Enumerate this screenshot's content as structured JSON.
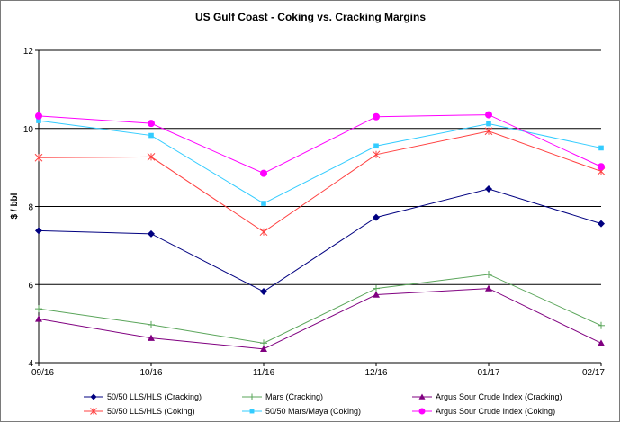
{
  "chart_data": {
    "type": "line",
    "title": "US Gulf Coast - Coking vs. Cracking  Margins",
    "ylabel": "$ / bbl",
    "xlabel": "",
    "categories": [
      "09/16",
      "10/16",
      "11/16",
      "12/16",
      "01/17",
      "02/17"
    ],
    "yticks": [
      "4",
      "6",
      "8",
      "10",
      "12"
    ],
    "ylim": [
      4,
      12
    ],
    "grid": "horizontal",
    "legend_position": "bottom",
    "series": [
      {
        "name": "50/50 LLS/HLS (Cracking)",
        "color": "#000080",
        "marker": "diamond",
        "values": [
          7.38,
          7.3,
          5.82,
          7.72,
          8.45,
          7.56
        ]
      },
      {
        "name": "Mars (Cracking)",
        "color": "#5aa55a",
        "marker": "plus",
        "values": [
          5.38,
          4.97,
          4.5,
          5.9,
          6.26,
          4.95
        ]
      },
      {
        "name": "Argus Sour Crude Index (Cracking)",
        "color": "#800080",
        "marker": "triangle",
        "values": [
          5.12,
          4.63,
          4.35,
          5.74,
          5.9,
          4.5
        ]
      },
      {
        "name": "50/50 LLS/HLS (Coking)",
        "color": "#ff4040",
        "marker": "star",
        "values": [
          9.25,
          9.27,
          7.35,
          9.33,
          9.93,
          8.9
        ]
      },
      {
        "name": "50/50 Mars/Maya (Coking)",
        "color": "#33ccff",
        "marker": "square",
        "values": [
          10.2,
          9.82,
          8.08,
          9.55,
          10.12,
          9.5
        ]
      },
      {
        "name": "Argus Sour Crude Index (Coking)",
        "color": "#ff00ff",
        "marker": "circle",
        "values": [
          10.32,
          10.13,
          8.85,
          10.3,
          10.35,
          9.02
        ]
      }
    ]
  }
}
